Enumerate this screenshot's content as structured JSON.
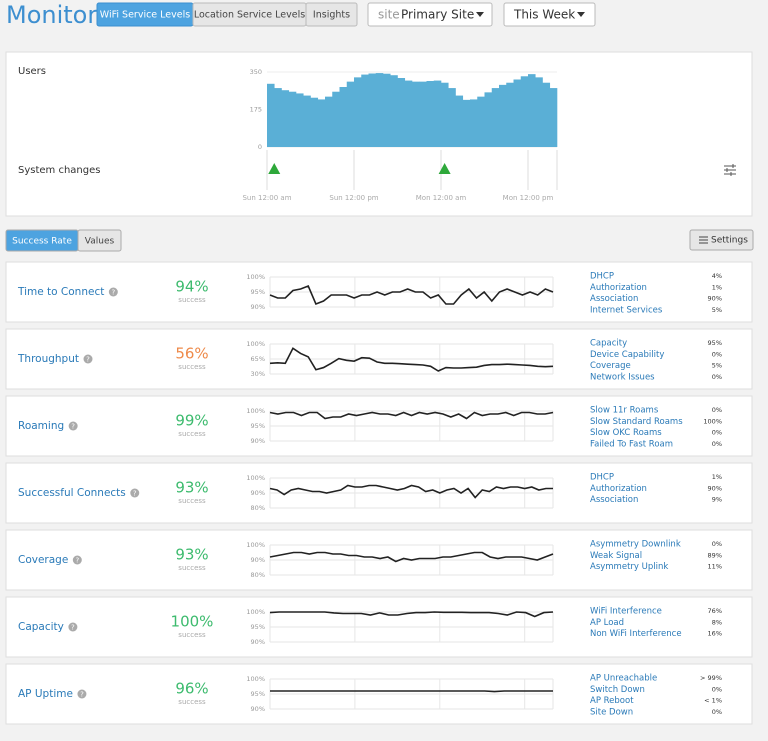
{
  "header": {
    "title": "Monitor",
    "tabs": [
      "WiFi Service Levels",
      "Location Service Levels",
      "Insights"
    ],
    "site_label": "site",
    "site": "Primary Site",
    "period": "This Week"
  },
  "users": {
    "type": "bar",
    "label": "Users",
    "color": "#5aafd6",
    "xlim": [
      0,
      40
    ],
    "ylim": [
      0,
      350
    ],
    "yticks": [
      0,
      175,
      350
    ],
    "xticks": [
      {
        "value": 0,
        "label": "Sun 12:00 am"
      },
      {
        "value": 12,
        "label": "Sun 12:00 pm"
      },
      {
        "value": 24,
        "label": "Mon 12:00 am"
      },
      {
        "value": 36,
        "label": "Mon 12:00 pm"
      }
    ],
    "values": [
      295,
      275,
      265,
      258,
      250,
      240,
      230,
      222,
      235,
      258,
      280,
      305,
      325,
      338,
      343,
      345,
      342,
      335,
      322,
      310,
      305,
      305,
      308,
      310,
      300,
      275,
      240,
      220,
      222,
      235,
      255,
      275,
      290,
      300,
      315,
      330,
      340,
      325,
      300,
      275
    ],
    "changes_label": "System changes",
    "changes": [
      1,
      24.5
    ],
    "changes_color": "#2ea83a"
  },
  "toolbar": {
    "views": [
      "Success Rate",
      "Values"
    ],
    "settings": "Settings"
  },
  "metrics": [
    {
      "name": "Time to Connect",
      "rate": "94%",
      "rate_color": "#3dbb6e",
      "rate_caption": "success",
      "ylim": [
        90,
        100
      ],
      "yticks": [
        {
          "value": 100,
          "label": "100%"
        },
        {
          "value": 95,
          "label": "95%"
        },
        {
          "value": 90,
          "label": "90%"
        }
      ],
      "values": [
        94,
        93,
        93,
        95.5,
        96,
        97,
        91,
        92,
        94,
        94,
        94,
        93,
        94,
        94,
        95,
        94,
        95,
        95,
        96,
        95,
        95,
        93,
        94,
        91,
        91,
        94,
        96,
        93,
        95,
        92,
        95,
        96,
        95,
        94,
        95,
        94,
        96,
        95
      ],
      "breakdown": [
        [
          "DHCP",
          "4%"
        ],
        [
          "Authorization",
          "1%"
        ],
        [
          "Association",
          "90%"
        ],
        [
          "Internet Services",
          "5%"
        ]
      ]
    },
    {
      "name": "Throughput",
      "rate": "56%",
      "rate_color": "#ee8a4a",
      "rate_caption": "success",
      "ylim": [
        30,
        100
      ],
      "yticks": [
        {
          "value": 100,
          "label": "100%"
        },
        {
          "value": 65,
          "label": "65%"
        },
        {
          "value": 30,
          "label": "30%"
        }
      ],
      "values": [
        55,
        56,
        55,
        90,
        78,
        70,
        40,
        45,
        55,
        66,
        62,
        60,
        68,
        67,
        58,
        55,
        55,
        54,
        53,
        52,
        51,
        48,
        37,
        45,
        44,
        44,
        45,
        46,
        50,
        52,
        52,
        53,
        52,
        51,
        50,
        48,
        47,
        48
      ],
      "breakdown": [
        [
          "Capacity",
          "95%"
        ],
        [
          "Device Capability",
          "0%"
        ],
        [
          "Coverage",
          "5%"
        ],
        [
          "Network Issues",
          "0%"
        ]
      ]
    },
    {
      "name": "Roaming",
      "rate": "99%",
      "rate_color": "#3dbb6e",
      "rate_caption": "success",
      "ylim": [
        90,
        100
      ],
      "yticks": [
        {
          "value": 100,
          "label": "100%"
        },
        {
          "value": 95,
          "label": "95%"
        },
        {
          "value": 90,
          "label": "90%"
        }
      ],
      "values": [
        99.5,
        99,
        99.5,
        99.5,
        98.5,
        99.5,
        99.5,
        97.5,
        98,
        98,
        99,
        98.5,
        99,
        99.5,
        99,
        99,
        98.5,
        99.5,
        98.5,
        99.5,
        99,
        99.5,
        99,
        98,
        99,
        97.5,
        99.5,
        98.5,
        99,
        99,
        99.5,
        98.5,
        99.5,
        99.5,
        99,
        99,
        99.5
      ],
      "breakdown": [
        [
          "Slow 11r Roams",
          "0%"
        ],
        [
          "Slow Standard Roams",
          "100%"
        ],
        [
          "Slow OKC Roams",
          "0%"
        ],
        [
          "Failed To Fast Roam",
          "0%"
        ]
      ]
    },
    {
      "name": "Successful Connects",
      "rate": "93%",
      "rate_color": "#3dbb6e",
      "rate_caption": "success",
      "ylim": [
        80,
        100
      ],
      "yticks": [
        {
          "value": 100,
          "label": "100%"
        },
        {
          "value": 90,
          "label": "90%"
        },
        {
          "value": 80,
          "label": "80%"
        }
      ],
      "values": [
        93,
        92,
        89,
        92,
        93,
        92,
        91,
        91,
        90,
        91,
        92,
        95,
        94,
        94,
        95,
        95,
        94,
        93,
        92,
        93,
        95,
        94,
        91,
        92,
        90,
        92,
        93,
        90,
        93,
        87,
        92,
        91,
        94,
        93,
        94,
        94,
        93,
        94,
        92,
        93,
        93
      ],
      "breakdown": [
        [
          "DHCP",
          "1%"
        ],
        [
          "Authorization",
          "90%"
        ],
        [
          "Association",
          "9%"
        ]
      ]
    },
    {
      "name": "Coverage",
      "rate": "93%",
      "rate_color": "#3dbb6e",
      "rate_caption": "success",
      "ylim": [
        80,
        100
      ],
      "yticks": [
        {
          "value": 100,
          "label": "100%"
        },
        {
          "value": 90,
          "label": "90%"
        },
        {
          "value": 80,
          "label": "80%"
        }
      ],
      "values": [
        92,
        93,
        94,
        95,
        95,
        94,
        95,
        95,
        94,
        94,
        93,
        93,
        92,
        92,
        91,
        92,
        89,
        91,
        90,
        91,
        91,
        91,
        92,
        92,
        93,
        94,
        95,
        95,
        92,
        91,
        92,
        92,
        92,
        91,
        90,
        92,
        94
      ],
      "breakdown": [
        [
          "Asymmetry Downlink",
          "0%"
        ],
        [
          "Weak Signal",
          "89%"
        ],
        [
          "Asymmetry Uplink",
          "11%"
        ]
      ]
    },
    {
      "name": "Capacity",
      "rate": "100%",
      "rate_color": "#3dbb6e",
      "rate_caption": "success",
      "ylim": [
        90,
        100
      ],
      "yticks": [
        {
          "value": 100,
          "label": "100%"
        },
        {
          "value": 95,
          "label": "95%"
        },
        {
          "value": 90,
          "label": "90%"
        }
      ],
      "values": [
        99.8,
        100,
        100,
        100,
        100,
        100,
        100,
        99.7,
        99.5,
        99.5,
        99.5,
        99,
        99.7,
        99,
        99,
        99.5,
        99.8,
        99.8,
        100,
        99.9,
        99.9,
        99.9,
        99.8,
        99.8,
        99.8,
        99.5,
        99,
        100,
        99.8,
        98.5,
        99.8,
        100
      ],
      "breakdown": [
        [
          "WiFi Interference",
          "76%"
        ],
        [
          "AP Load",
          "8%"
        ],
        [
          "Non WiFi Interference",
          "16%"
        ]
      ]
    },
    {
      "name": "AP Uptime",
      "rate": "96%",
      "rate_color": "#3dbb6e",
      "rate_caption": "success",
      "ylim": [
        90,
        100
      ],
      "yticks": [
        {
          "value": 100,
          "label": "100%"
        },
        {
          "value": 95,
          "label": "95%"
        },
        {
          "value": 90,
          "label": "90%"
        }
      ],
      "values": [
        96,
        96,
        96,
        96,
        96,
        96,
        96,
        96,
        96,
        96,
        96,
        96,
        96,
        96,
        96,
        96,
        96,
        96,
        96,
        96,
        96,
        96,
        96,
        95.8,
        96,
        96,
        96,
        96,
        96,
        96
      ],
      "breakdown": [
        [
          "AP Unreachable",
          "> 99%"
        ],
        [
          "Switch Down",
          "0%"
        ],
        [
          "AP Reboot",
          "< 1%"
        ],
        [
          "Site Down",
          "0%"
        ]
      ]
    }
  ]
}
